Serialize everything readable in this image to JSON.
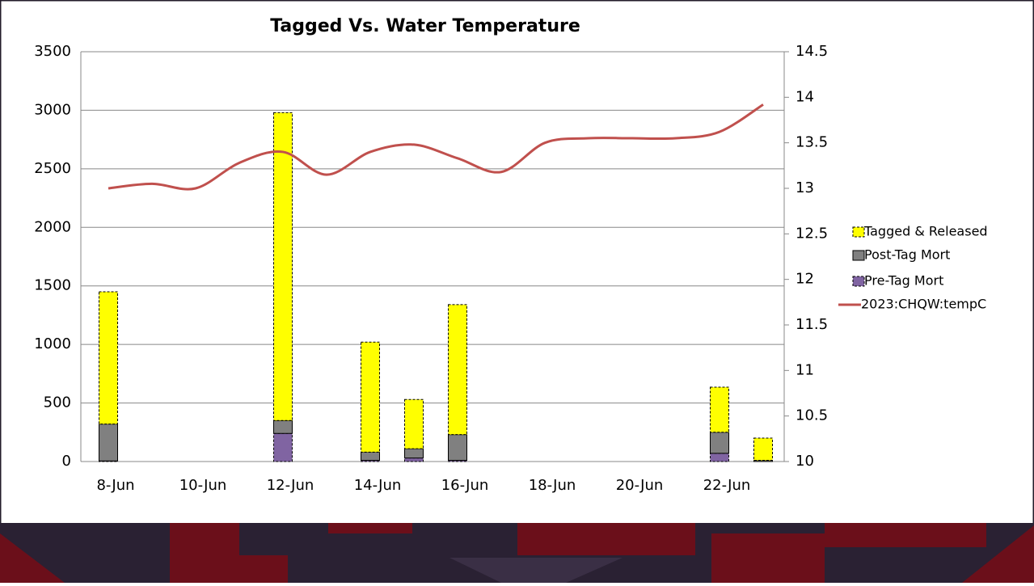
{
  "chart_data": {
    "type": "bar",
    "title": "Tagged Vs. Water Temperature",
    "categories": [
      "8-Jun",
      null,
      "10-Jun",
      null,
      "12-Jun",
      null,
      "14-Jun",
      null,
      "16-Jun",
      null,
      "18-Jun",
      null,
      "20-Jun",
      null,
      "22-Jun",
      null
    ],
    "series": [
      {
        "name": "Tagged & Released",
        "color": "#ffff00",
        "values": [
          1130,
          null,
          null,
          null,
          2630,
          null,
          940,
          420,
          1110,
          null,
          null,
          null,
          null,
          null,
          385,
          190
        ]
      },
      {
        "name": "Post-Tag Mort",
        "color": "#808080",
        "values": [
          315,
          null,
          null,
          null,
          110,
          null,
          70,
          80,
          220,
          null,
          null,
          null,
          null,
          null,
          180,
          10
        ]
      },
      {
        "name": "Pre-Tag Mort",
        "color": "#8064a2",
        "values": [
          5,
          null,
          null,
          null,
          240,
          null,
          10,
          30,
          10,
          null,
          null,
          null,
          null,
          null,
          70,
          0
        ]
      },
      {
        "name": "2023:CHQW:tempC",
        "color": "#c0504d",
        "axis": "y2",
        "type": "line",
        "values": [
          13.0,
          13.05,
          13.0,
          13.28,
          13.4,
          13.15,
          13.4,
          13.48,
          13.33,
          13.18,
          13.5,
          13.55,
          13.55,
          13.55,
          13.62,
          13.92
        ]
      }
    ],
    "ylim": [
      0,
      3500
    ],
    "yticks": [
      0,
      500,
      1000,
      1500,
      2000,
      2500,
      3000,
      3500
    ],
    "y2lim": [
      10,
      14.5
    ],
    "y2ticks": [
      10,
      10.5,
      11,
      11.5,
      12,
      12.5,
      13,
      13.5,
      14,
      14.5
    ],
    "grid": true,
    "legend": "right"
  }
}
